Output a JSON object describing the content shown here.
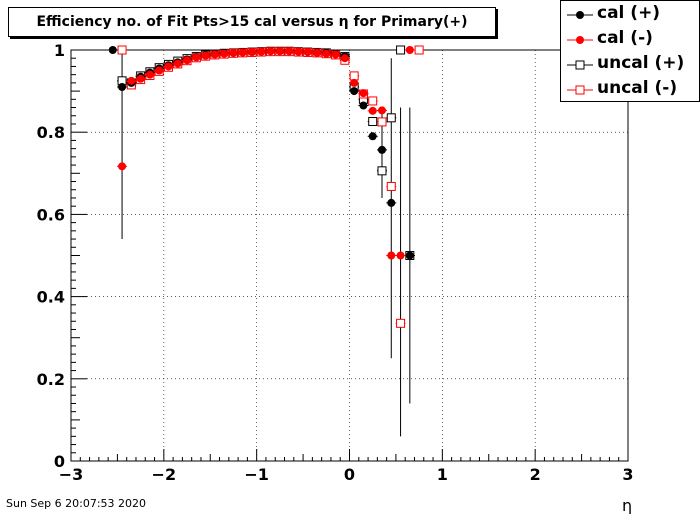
{
  "title": "Efficiency no. of Fit Pts>15 cal versus η for Primary(+)",
  "timestamp": "Sun Sep  6 20:07:53 2020",
  "chart_data": {
    "type": "scatter",
    "xlabel": "η",
    "ylabel": "",
    "xlim": [
      -3,
      3
    ],
    "ylim": [
      0,
      1.0
    ],
    "x_ticks": [
      "−3",
      "−2",
      "−1",
      "0",
      "1",
      "2",
      "3"
    ],
    "y_ticks": [
      "0",
      "0.2",
      "0.4",
      "0.6",
      "0.8",
      "1"
    ],
    "grid": true,
    "legend_position": "top-right",
    "series": [
      {
        "name": "cal (+)",
        "color": "#000000",
        "marker": "filled-circle",
        "points": [
          {
            "x": -2.55,
            "y": 1.0
          },
          {
            "x": -2.45,
            "y": 0.91
          },
          {
            "x": -2.35,
            "y": 0.92
          },
          {
            "x": -2.25,
            "y": 0.935
          },
          {
            "x": -2.15,
            "y": 0.945
          },
          {
            "x": -2.05,
            "y": 0.955
          },
          {
            "x": -1.95,
            "y": 0.963
          },
          {
            "x": -1.85,
            "y": 0.97
          },
          {
            "x": -1.75,
            "y": 0.977
          },
          {
            "x": -1.65,
            "y": 0.983
          },
          {
            "x": -1.55,
            "y": 0.987
          },
          {
            "x": -1.45,
            "y": 0.99
          },
          {
            "x": -1.35,
            "y": 0.992
          },
          {
            "x": -1.25,
            "y": 0.993
          },
          {
            "x": -1.15,
            "y": 0.994
          },
          {
            "x": -1.05,
            "y": 0.995
          },
          {
            "x": -0.95,
            "y": 0.996
          },
          {
            "x": -0.85,
            "y": 0.997
          },
          {
            "x": -0.75,
            "y": 0.997
          },
          {
            "x": -0.65,
            "y": 0.997
          },
          {
            "x": -0.55,
            "y": 0.996
          },
          {
            "x": -0.45,
            "y": 0.995
          },
          {
            "x": -0.35,
            "y": 0.994
          },
          {
            "x": -0.25,
            "y": 0.993
          },
          {
            "x": -0.15,
            "y": 0.99
          },
          {
            "x": -0.05,
            "y": 0.985
          },
          {
            "x": 0.05,
            "y": 0.9
          },
          {
            "x": 0.15,
            "y": 0.865
          },
          {
            "x": 0.25,
            "y": 0.79
          },
          {
            "x": 0.35,
            "y": 0.757
          },
          {
            "x": 0.45,
            "y": 0.628
          },
          {
            "x": 0.65,
            "y": 0.5
          }
        ]
      },
      {
        "name": "cal (-)",
        "color": "#ff0000",
        "marker": "filled-circle",
        "points": [
          {
            "x": -2.45,
            "y": 0.717
          },
          {
            "x": -2.35,
            "y": 0.925
          },
          {
            "x": -2.25,
            "y": 0.93
          },
          {
            "x": -2.15,
            "y": 0.94
          },
          {
            "x": -2.05,
            "y": 0.95
          },
          {
            "x": -1.95,
            "y": 0.96
          },
          {
            "x": -1.85,
            "y": 0.967
          },
          {
            "x": -1.75,
            "y": 0.975
          },
          {
            "x": -1.65,
            "y": 0.982
          },
          {
            "x": -1.55,
            "y": 0.986
          },
          {
            "x": -1.45,
            "y": 0.989
          },
          {
            "x": -1.35,
            "y": 0.991
          },
          {
            "x": -1.25,
            "y": 0.993
          },
          {
            "x": -1.15,
            "y": 0.994
          },
          {
            "x": -1.05,
            "y": 0.995
          },
          {
            "x": -0.95,
            "y": 0.996
          },
          {
            "x": -0.85,
            "y": 0.997
          },
          {
            "x": -0.75,
            "y": 0.997
          },
          {
            "x": -0.65,
            "y": 0.997
          },
          {
            "x": -0.55,
            "y": 0.996
          },
          {
            "x": -0.45,
            "y": 0.995
          },
          {
            "x": -0.35,
            "y": 0.993
          },
          {
            "x": -0.25,
            "y": 0.991
          },
          {
            "x": -0.15,
            "y": 0.989
          },
          {
            "x": -0.05,
            "y": 0.98
          },
          {
            "x": 0.05,
            "y": 0.92
          },
          {
            "x": 0.15,
            "y": 0.895
          },
          {
            "x": 0.25,
            "y": 0.852
          },
          {
            "x": 0.35,
            "y": 0.853
          },
          {
            "x": 0.45,
            "y": 0.5
          },
          {
            "x": 0.55,
            "y": 0.5
          },
          {
            "x": 0.65,
            "y": 1.0
          }
        ]
      },
      {
        "name": "uncal (+)",
        "color": "#000000",
        "marker": "open-square",
        "points": [
          {
            "x": -2.45,
            "y": 0.925
          },
          {
            "x": -2.35,
            "y": 0.92
          },
          {
            "x": -2.25,
            "y": 0.937
          },
          {
            "x": -2.15,
            "y": 0.947
          },
          {
            "x": -2.05,
            "y": 0.957
          },
          {
            "x": -1.95,
            "y": 0.965
          },
          {
            "x": -1.85,
            "y": 0.973
          },
          {
            "x": -1.75,
            "y": 0.979
          },
          {
            "x": -1.65,
            "y": 0.984
          },
          {
            "x": -1.55,
            "y": 0.988
          },
          {
            "x": -1.45,
            "y": 0.99
          },
          {
            "x": -1.35,
            "y": 0.992
          },
          {
            "x": -1.25,
            "y": 0.993
          },
          {
            "x": -1.15,
            "y": 0.994
          },
          {
            "x": -1.05,
            "y": 0.995
          },
          {
            "x": -0.95,
            "y": 0.996
          },
          {
            "x": -0.85,
            "y": 0.997
          },
          {
            "x": -0.75,
            "y": 0.997
          },
          {
            "x": -0.65,
            "y": 0.997
          },
          {
            "x": -0.55,
            "y": 0.996
          },
          {
            "x": -0.45,
            "y": 0.995
          },
          {
            "x": -0.35,
            "y": 0.994
          },
          {
            "x": -0.25,
            "y": 0.993
          },
          {
            "x": -0.15,
            "y": 0.99
          },
          {
            "x": -0.05,
            "y": 0.984
          },
          {
            "x": 0.05,
            "y": 0.91
          },
          {
            "x": 0.15,
            "y": 0.88
          },
          {
            "x": 0.25,
            "y": 0.826
          },
          {
            "x": 0.35,
            "y": 0.706
          },
          {
            "x": 0.45,
            "y": 0.835
          },
          {
            "x": 0.55,
            "y": 1.0
          },
          {
            "x": 0.65,
            "y": 0.5
          }
        ]
      },
      {
        "name": "uncal (-)",
        "color": "#ff0000",
        "marker": "open-square",
        "points": [
          {
            "x": -2.45,
            "y": 1.0
          },
          {
            "x": -2.35,
            "y": 0.915
          },
          {
            "x": -2.25,
            "y": 0.928
          },
          {
            "x": -2.15,
            "y": 0.938
          },
          {
            "x": -2.05,
            "y": 0.948
          },
          {
            "x": -1.95,
            "y": 0.958
          },
          {
            "x": -1.85,
            "y": 0.966
          },
          {
            "x": -1.75,
            "y": 0.974
          },
          {
            "x": -1.65,
            "y": 0.981
          },
          {
            "x": -1.55,
            "y": 0.985
          },
          {
            "x": -1.45,
            "y": 0.988
          },
          {
            "x": -1.35,
            "y": 0.99
          },
          {
            "x": -1.25,
            "y": 0.992
          },
          {
            "x": -1.15,
            "y": 0.993
          },
          {
            "x": -1.05,
            "y": 0.994
          },
          {
            "x": -0.95,
            "y": 0.995
          },
          {
            "x": -0.85,
            "y": 0.996
          },
          {
            "x": -0.75,
            "y": 0.996
          },
          {
            "x": -0.65,
            "y": 0.996
          },
          {
            "x": -0.55,
            "y": 0.995
          },
          {
            "x": -0.45,
            "y": 0.994
          },
          {
            "x": -0.35,
            "y": 0.993
          },
          {
            "x": -0.25,
            "y": 0.991
          },
          {
            "x": -0.15,
            "y": 0.988
          },
          {
            "x": -0.05,
            "y": 0.975
          },
          {
            "x": 0.05,
            "y": 0.937
          },
          {
            "x": 0.15,
            "y": 0.893
          },
          {
            "x": 0.25,
            "y": 0.876
          },
          {
            "x": 0.35,
            "y": 0.825
          },
          {
            "x": 0.45,
            "y": 0.668
          },
          {
            "x": 0.55,
            "y": 0.335
          },
          {
            "x": 0.75,
            "y": 1.0
          }
        ]
      }
    ],
    "error_bars": [
      {
        "x": -2.45,
        "low": 0.54,
        "high": 1.0
      },
      {
        "x": 0.35,
        "low": 0.64,
        "high": 0.86
      },
      {
        "x": 0.45,
        "low": 0.25,
        "high": 0.98
      },
      {
        "x": 0.55,
        "low": 0.06,
        "high": 0.86
      },
      {
        "x": 0.65,
        "low": 0.14,
        "high": 0.86
      }
    ]
  }
}
